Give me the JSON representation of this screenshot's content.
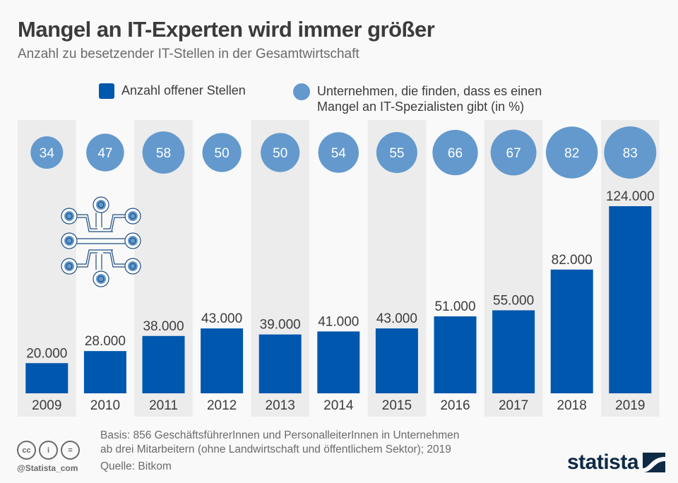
{
  "header": {
    "title": "Mangel an IT-Experten wird immer größer",
    "subtitle": "Anzahl zu besetzender IT-Stellen in der Gesamtwirtschaft"
  },
  "legend": {
    "bars_label": "Anzahl offener Stellen",
    "circles_label_line1": "Unternehmen, die finden, dass es einen",
    "circles_label_line2": "Mangel an IT-Spezialisten gibt (in %)"
  },
  "colors": {
    "bar": "#0057ae",
    "circle": "#6399cd",
    "stripe": "#ececec",
    "text": "#3c3c3c",
    "brand": "#0f2a44"
  },
  "chart_data": {
    "type": "bar",
    "title": "Mangel an IT-Experten wird immer größer",
    "subtitle": "Anzahl zu besetzender IT-Stellen in der Gesamtwirtschaft",
    "xlabel": "",
    "ylabel": "",
    "categories": [
      "2009",
      "2010",
      "2011",
      "2012",
      "2013",
      "2014",
      "2015",
      "2016",
      "2017",
      "2018",
      "2019"
    ],
    "series": [
      {
        "name": "Anzahl offener Stellen",
        "type": "bar",
        "values": [
          20000,
          28000,
          38000,
          43000,
          39000,
          41000,
          43000,
          51000,
          55000,
          82000,
          124000
        ],
        "labels": [
          "20.000",
          "28.000",
          "38.000",
          "43.000",
          "39.000",
          "41.000",
          "43.000",
          "51.000",
          "55.000",
          "82.000",
          "124.000"
        ]
      },
      {
        "name": "Unternehmen, die finden, dass es einen Mangel an IT-Spezialisten gibt (in %)",
        "type": "bubble",
        "values": [
          34,
          47,
          58,
          50,
          50,
          54,
          55,
          66,
          67,
          82,
          83
        ],
        "labels": [
          "34",
          "47",
          "58",
          "50",
          "50",
          "54",
          "55",
          "66",
          "67",
          "82",
          "83"
        ]
      }
    ],
    "ylim": [
      0,
      124000
    ],
    "grid": false,
    "legend_position": "top"
  },
  "footer": {
    "basis_line1": "Basis: 856 GeschäftsführerInnen und PersonalleiterInnen in Unternehmen",
    "basis_line2": "ab drei Mitarbeitern (ohne Landwirtschaft und öffentlichem Sektor); 2019",
    "source": "Quelle: Bitkom",
    "handle": "@Statista_com",
    "brand": "statista",
    "cc_icons": [
      "cc-icon",
      "by-icon",
      "nd-icon"
    ],
    "cc_glyphs": [
      "cc",
      "i",
      "="
    ]
  },
  "decor": {
    "circuit_icon": "circuit-icon"
  }
}
